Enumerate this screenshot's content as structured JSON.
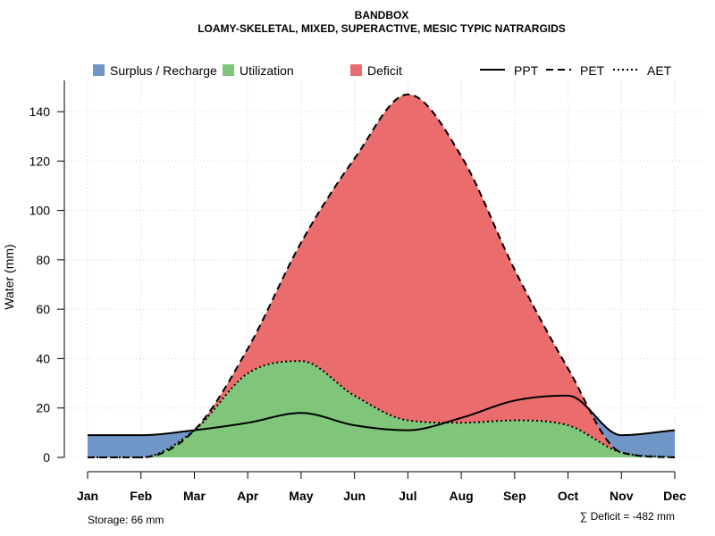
{
  "chart_data": {
    "type": "area",
    "title": "BANDBOX",
    "subtitle": "LOAMY-SKELETAL, MIXED, SUPERACTIVE, MESIC TYPIC NATRARGIDS",
    "xlabel": "",
    "ylabel": "Water (mm)",
    "ylim": [
      0,
      150
    ],
    "yticks": [
      0,
      20,
      40,
      60,
      80,
      100,
      120,
      140
    ],
    "ytick_labels": [
      "0",
      "20",
      "40",
      "60",
      "80",
      "100",
      "120",
      "140"
    ],
    "grid": true,
    "categories": [
      "Jan",
      "Feb",
      "Mar",
      "Apr",
      "May",
      "Jun",
      "Jul",
      "Aug",
      "Sep",
      "Oct",
      "Nov",
      "Dec"
    ],
    "series": [
      {
        "name": "PPT",
        "style": "solid",
        "values": [
          9,
          9,
          11,
          14,
          18,
          13,
          11,
          16,
          23,
          25,
          9,
          11
        ]
      },
      {
        "name": "PET",
        "style": "dashed",
        "values": [
          0,
          0,
          11,
          44,
          87,
          121,
          147,
          122,
          76,
          36,
          2,
          0
        ]
      },
      {
        "name": "AET",
        "style": "dotted",
        "values": [
          0,
          0,
          11,
          34,
          39,
          25,
          15,
          14,
          15,
          13,
          2,
          0
        ]
      }
    ],
    "areas": [
      {
        "name": "Surplus / Recharge",
        "color": "#7096C8"
      },
      {
        "name": "Utilization",
        "color": "#7FC57A"
      },
      {
        "name": "Deficit",
        "color": "#EB6C6C"
      }
    ],
    "legend_position": "top",
    "annotations": {
      "storage": "Storage: 66 mm",
      "deficit": "∑ Deficit = -482 mm"
    }
  }
}
